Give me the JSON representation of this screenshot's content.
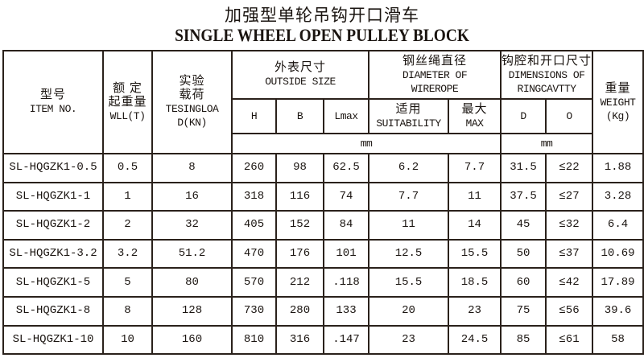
{
  "title": {
    "zh": "加强型单轮吊钩开口滑车",
    "en": "SINGLE WHEEL OPEN PULLEY BLOCK"
  },
  "headers": {
    "item": {
      "zh": "型号",
      "en": "ITEM NO."
    },
    "wll": {
      "zh1": "额 定",
      "zh2": "起重量",
      "en": "WLL(T)"
    },
    "test": {
      "zh1": "实验",
      "zh2": "载荷",
      "en1": "TESINGLOA",
      "en2": "D(KN)"
    },
    "outside": {
      "zh": "外表尺寸",
      "en": "OUTSIDE SIZE",
      "h": "H",
      "b": "B",
      "lmax": "Lmax"
    },
    "wirerope": {
      "zh": "钢丝绳直径",
      "en1": "DIAMETER OF",
      "en2": "WIREROPE",
      "suit_zh": "适用",
      "suit_en": "SUITABILITY",
      "max_zh": "最大",
      "max_en": "MAX"
    },
    "ring": {
      "zh": "钩腔和开口尺寸",
      "en1": "DIMENSIONS OF",
      "en2": "RINGCAVTTY",
      "d": "D",
      "o": "O"
    },
    "weight": {
      "zh": "重量",
      "en1": "WEIGHT",
      "en2": "(Kg)"
    },
    "unit_mm": "mm",
    "unit_mm2": "mm"
  },
  "rows": [
    [
      "SL-HQGZK1-0.5",
      "0.5",
      "8",
      "260",
      "98",
      "62.5",
      "6.2",
      "7.7",
      "31.5",
      "≤22",
      "1.88"
    ],
    [
      "SL-HQGZK1-1",
      "1",
      "16",
      "318",
      "116",
      "74",
      "7.7",
      "11",
      "37.5",
      "≤27",
      "3.28"
    ],
    [
      "SL-HQGZK1-2",
      "2",
      "32",
      "405",
      "152",
      "84",
      "11",
      "14",
      "45",
      "≤32",
      "6.4"
    ],
    [
      "SL-HQGZK1-3.2",
      "3.2",
      "51.2",
      "470",
      "176",
      "101",
      "12.5",
      "15.5",
      "50",
      "≤37",
      "10.69"
    ],
    [
      "SL-HQGZK1-5",
      "5",
      "80",
      "570",
      "212",
      ".118",
      "15.5",
      "18.5",
      "60",
      "≤42",
      "17.89"
    ],
    [
      "SL-HQGZK1-8",
      "8",
      "128",
      "730",
      "280",
      "133",
      "20",
      "23",
      "75",
      "≤56",
      "39.6"
    ],
    [
      "SL-HQGZK1-10",
      "10",
      "160",
      "810",
      "316",
      ".147",
      "23",
      "24.5",
      "85",
      "≤61",
      "58"
    ]
  ]
}
